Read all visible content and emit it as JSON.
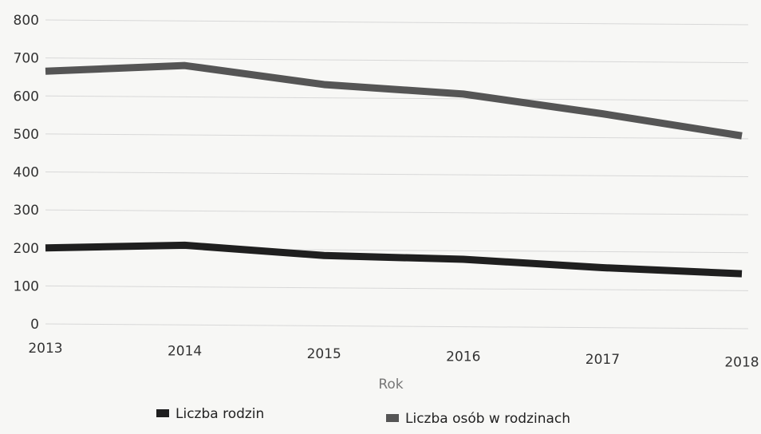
{
  "chart_data": {
    "type": "line",
    "title": "",
    "xlabel": "Rok",
    "ylabel": "",
    "x": [
      "2013",
      "2014",
      "2015",
      "2016",
      "2017",
      "2018"
    ],
    "ylim": [
      0,
      800
    ],
    "yticks": [
      0,
      100,
      200,
      300,
      400,
      500,
      600,
      700,
      800
    ],
    "grid": true,
    "legend_position": "bottom",
    "series": [
      {
        "name": "Liczba rodzin",
        "color": "#1f1f1f",
        "values": [
          200,
          207,
          180,
          170,
          148,
          132
        ]
      },
      {
        "name": "Liczba osób w rodzinach",
        "color": "#555555",
        "values": [
          665,
          680,
          630,
          605,
          553,
          495
        ]
      }
    ]
  }
}
